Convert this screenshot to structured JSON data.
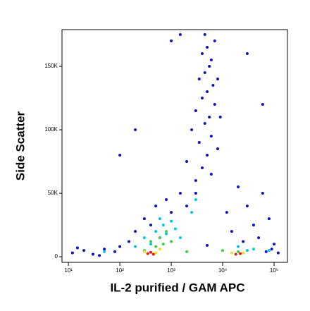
{
  "chart_data": {
    "type": "scatter",
    "x_label": "IL-2 purified / GAM APC",
    "y_label": "Side Scatter",
    "x_log": true,
    "xlim": [
      7.5,
      182000
    ],
    "xticks": [
      {
        "value": 10,
        "label": "10¹"
      },
      {
        "value": 100,
        "label": "10²"
      },
      {
        "value": 1000,
        "label": "10³"
      },
      {
        "value": 10000,
        "label": "10⁴"
      },
      {
        "value": 100000,
        "label": "10⁵"
      }
    ],
    "ylim": [
      -4400,
      178900
    ],
    "yticks": [
      0,
      {
        "value": 50000,
        "label": "50K"
      },
      {
        "value": 100000,
        "label": "100K"
      },
      {
        "value": 150000,
        "label": "150K"
      }
    ],
    "series": [
      {
        "color": "#1010c8",
        "x": [
          3000,
          4000,
          5000,
          3500,
          6000,
          4500,
          5500,
          3000,
          7000,
          4000,
          5000,
          6500,
          3500,
          4500,
          5500,
          6000,
          4000,
          5000,
          7000,
          4500,
          8000,
          2500,
          9000,
          2000,
          6000,
          3000,
          8000,
          200,
          300,
          500,
          800,
          1500,
          1000,
          150,
          400,
          2000,
          600,
          15000,
          30000,
          50000,
          80000,
          20000,
          12000,
          40000,
          100000,
          25000,
          60000,
          12,
          20,
          30,
          50,
          80,
          15,
          40,
          100,
          70000,
          120000,
          90000,
          5000,
          200,
          1000,
          1500,
          100,
          30000,
          60000
        ],
        "values": [
          60000,
          70000,
          80000,
          90000,
          95000,
          105000,
          110000,
          115000,
          120000,
          125000,
          130000,
          135000,
          140000,
          145000,
          150000,
          155000,
          160000,
          165000,
          170000,
          175000,
          140000,
          100000,
          110000,
          75000,
          65000,
          50000,
          85000,
          20000,
          30000,
          40000,
          45000,
          50000,
          35000,
          12000,
          25000,
          40000,
          15000,
          20000,
          40000,
          15000,
          30000,
          55000,
          35000,
          25000,
          10000,
          12000,
          50000,
          3000,
          5000,
          2000,
          6000,
          4000,
          7000,
          1000,
          8000,
          4000,
          3000,
          6000,
          9000,
          100000,
          170000,
          175000,
          80000,
          160000,
          120000
        ]
      },
      {
        "color": "#00c8e0",
        "x": [
          300,
          500,
          700,
          1000,
          400,
          800,
          1200,
          600,
          200,
          1500,
          2500,
          3000,
          50,
          30000,
          80000,
          20000,
          40000
        ],
        "values": [
          15000,
          20000,
          25000,
          28000,
          10000,
          18000,
          22000,
          30000,
          8000,
          15000,
          35000,
          45000,
          4000,
          5000,
          5000,
          8000,
          6000
        ]
      },
      {
        "color": "#40d040",
        "x": [
          400,
          600,
          800,
          500,
          1000,
          300,
          700,
          2000,
          20000,
          10000
        ],
        "values": [
          12000,
          15000,
          20000,
          8000,
          12000,
          5000,
          10000,
          4000,
          4000,
          5000
        ]
      },
      {
        "color": "#f0e020",
        "x": [
          300,
          500,
          600,
          15000,
          25000
        ],
        "values": [
          4000,
          3000,
          6000,
          3000,
          3000
        ]
      },
      {
        "color": "#e02010",
        "x": [
          350,
          450,
          400,
          18000,
          22000
        ],
        "values": [
          2500,
          2000,
          3500,
          2000,
          2500
        ]
      }
    ]
  }
}
